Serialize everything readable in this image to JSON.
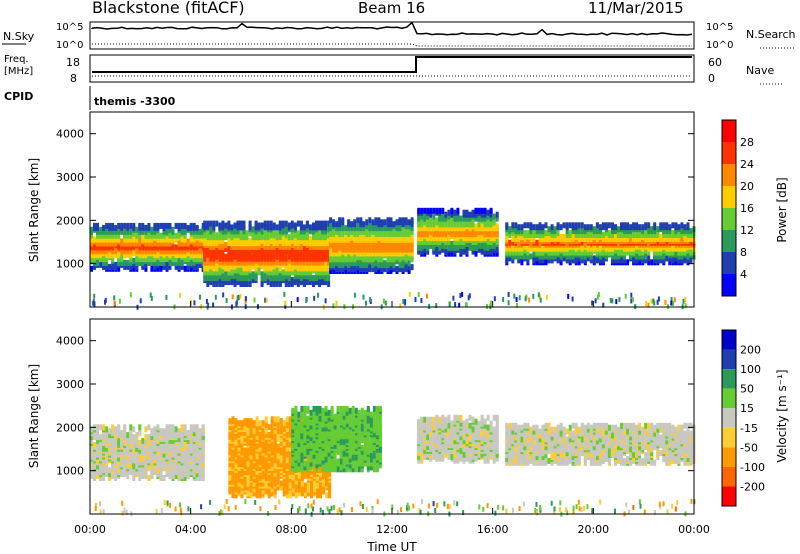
{
  "header": {
    "station": "Blackstone (fitACF)",
    "beam": "Beam 16",
    "date": "11/Mar/2015"
  },
  "panels": {
    "nsky": {
      "left_label": "N.Sky",
      "left_ticks": [
        "10^5",
        "10^0"
      ],
      "right_ticks": [
        "10^5",
        "10^0"
      ],
      "right_label": "N.Search"
    },
    "freq": {
      "left_label_1": "Freq.",
      "left_label_2": "[MHz]",
      "left_ticks": [
        "18",
        "8"
      ],
      "right_ticks": [
        "60",
        "0"
      ],
      "right_label": "Nave"
    },
    "cpid": {
      "left_label": "CPID",
      "program": "themis -3300"
    }
  },
  "colors": {
    "power": [
      "#0000ff",
      "#1f3fb0",
      "#2a9a5a",
      "#66cc33",
      "#ffcc00",
      "#ff8800",
      "#ff3300",
      "#ff0000"
    ],
    "velocity": [
      "#ff0000",
      "#ff6600",
      "#ff9900",
      "#ffcc33",
      "#c8c8c0",
      "#66cc33",
      "#2a9a5a",
      "#1f3fb0",
      "#0000cc"
    ],
    "ground_scatter": "#c8c8c0"
  },
  "chart_data": [
    {
      "type": "heatmap",
      "panel": "power",
      "ylabel": "Slant Range [km]",
      "x_ticks": [
        "00:00",
        "04:00",
        "08:00",
        "12:00",
        "16:00",
        "20:00",
        "00:00"
      ],
      "y_ticks": [
        "1000",
        "2000",
        "3000",
        "4000"
      ],
      "ylim": [
        0,
        4500
      ],
      "colorbar": {
        "label": "Power [dB]",
        "ticks": [
          "4",
          "8",
          "12",
          "16",
          "20",
          "24",
          "28"
        ]
      },
      "bands": [
        {
          "t_start": 0.0,
          "t_end": 4.5,
          "r_center": 1450,
          "r_width": 500,
          "peak": 26
        },
        {
          "t_start": 4.5,
          "t_end": 9.5,
          "r_center": 1300,
          "r_width": 700,
          "peak": 28
        },
        {
          "t_start": 9.5,
          "t_end": 12.8,
          "r_center": 1500,
          "r_width": 600,
          "peak": 24
        },
        {
          "t_start": 13.0,
          "t_end": 16.2,
          "r_center": 1800,
          "r_width": 500,
          "peak": 22
        },
        {
          "t_start": 16.5,
          "t_end": 24.0,
          "r_center": 1550,
          "r_width": 450,
          "peak": 24
        }
      ]
    },
    {
      "type": "heatmap",
      "panel": "velocity",
      "ylabel": "Slant Range [km]",
      "xlabel": "Time UT",
      "x_ticks": [
        "00:00",
        "04:00",
        "08:00",
        "12:00",
        "16:00",
        "20:00",
        "00:00"
      ],
      "y_ticks": [
        "1000",
        "2000",
        "3000",
        "4000"
      ],
      "ylim": [
        0,
        4500
      ],
      "colorbar": {
        "label": "Velocity [m s⁻¹]",
        "ticks": [
          "200",
          "100",
          "50",
          "15",
          "-15",
          "-50",
          "-100",
          "-200"
        ]
      },
      "bands": [
        {
          "t_start": 0.0,
          "t_end": 4.5,
          "r_center": 1500,
          "r_width": 600,
          "v": 0
        },
        {
          "t_start": 5.5,
          "t_end": 9.5,
          "r_center": 1400,
          "r_width": 900,
          "v": -60
        },
        {
          "t_start": 8.0,
          "t_end": 11.5,
          "r_center": 1800,
          "r_width": 700,
          "v": 40
        },
        {
          "t_start": 13.0,
          "t_end": 16.2,
          "r_center": 1800,
          "r_width": 500,
          "v": 0
        },
        {
          "t_start": 16.5,
          "t_end": 24.0,
          "r_center": 1700,
          "r_width": 450,
          "v": 0
        }
      ]
    }
  ]
}
